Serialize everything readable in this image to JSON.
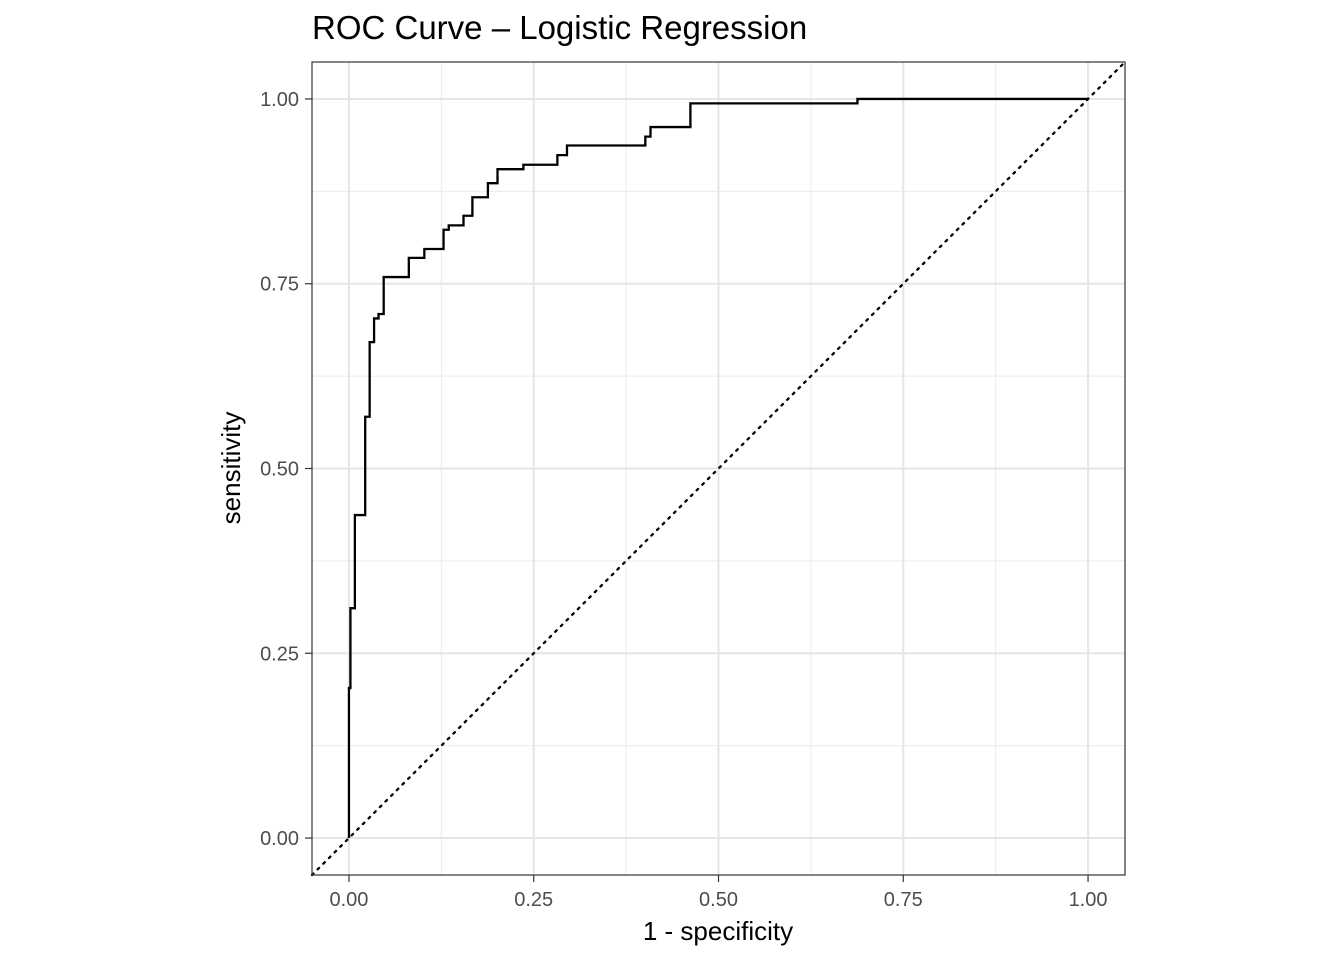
{
  "chart_data": {
    "type": "line",
    "title": "ROC Curve – Logistic Regression",
    "xlabel": "1 - specificity",
    "ylabel": "sensitivity",
    "xlim": [
      -0.05,
      1.05
    ],
    "ylim": [
      -0.05,
      1.05
    ],
    "x_ticks": [
      "0.00",
      "0.25",
      "0.50",
      "0.75",
      "1.00"
    ],
    "y_ticks": [
      "0.00",
      "0.25",
      "0.50",
      "0.75",
      "1.00"
    ],
    "grid": true,
    "series": [
      {
        "line_style": "solid",
        "color": "#000000",
        "x": [
          0,
          0,
          0.002,
          0.002,
          0.008,
          0.008,
          0.022,
          0.022,
          0.028,
          0.028,
          0.034,
          0.034,
          0.04,
          0.04,
          0.047,
          0.047,
          0.081,
          0.081,
          0.102,
          0.102,
          0.128,
          0.128,
          0.135,
          0.135,
          0.155,
          0.155,
          0.167,
          0.167,
          0.188,
          0.188,
          0.201,
          0.201,
          0.236,
          0.236,
          0.282,
          0.282,
          0.295,
          0.295,
          0.401,
          0.401,
          0.408,
          0.408,
          0.462,
          0.462,
          0.688,
          0.688,
          0.695,
          0.695,
          1.0
        ],
        "y": [
          0,
          0.203,
          0.203,
          0.311,
          0.311,
          0.437,
          0.437,
          0.57,
          0.57,
          0.671,
          0.671,
          0.703,
          0.703,
          0.709,
          0.709,
          0.759,
          0.759,
          0.785,
          0.785,
          0.797,
          0.797,
          0.823,
          0.823,
          0.829,
          0.829,
          0.842,
          0.842,
          0.867,
          0.867,
          0.886,
          0.886,
          0.905,
          0.905,
          0.911,
          0.911,
          0.924,
          0.924,
          0.937,
          0.937,
          0.949,
          0.949,
          0.962,
          0.962,
          0.994,
          0.994,
          1.0,
          1.0,
          1.0,
          1.0
        ]
      },
      {
        "line_style": "dotted",
        "color": "#000000",
        "x": [
          -0.05,
          1.05
        ],
        "y": [
          -0.05,
          1.05
        ]
      }
    ]
  }
}
